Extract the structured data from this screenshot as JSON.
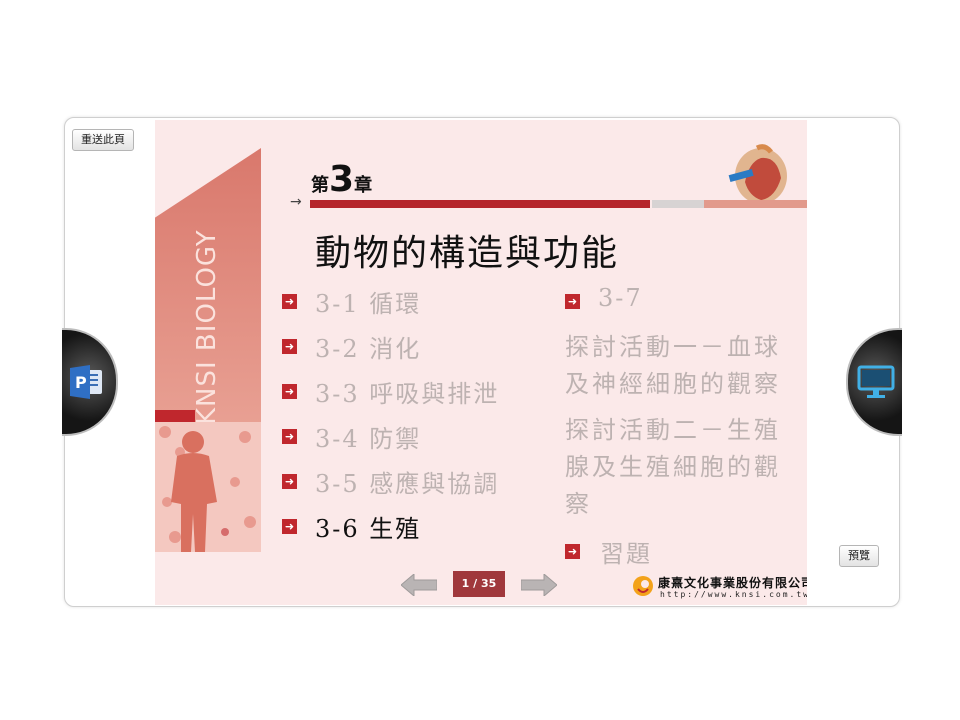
{
  "toolbar": {
    "reload_label": "重送此頁",
    "preview_label": "預覽"
  },
  "slide": {
    "brand_vertical": "KNSI BIOLOGY",
    "chapter_prefix": "第",
    "chapter_number": "3",
    "chapter_suffix": "章",
    "title": "動物的構造與功能",
    "sections": [
      {
        "label": "3-1 循環",
        "active": false
      },
      {
        "label": "3-2 消化",
        "active": false
      },
      {
        "label": "3-3 呼吸與排泄",
        "active": false
      },
      {
        "label": "3-4 防禦",
        "active": false
      },
      {
        "label": "3-5 感應與協調",
        "active": false
      },
      {
        "label": "3-6 生殖",
        "active": true
      }
    ],
    "right_section": "3-7",
    "activity1_line1": "探討活動一－血球",
    "activity1_line2": "及神經細胞的觀察",
    "activity2_line1": "探討活動二－生殖",
    "activity2_line2": "腺及生殖細胞的觀",
    "activity2_line3": "察",
    "exercise": "習題",
    "page_indicator": "1 / 35",
    "publisher": "康熹文化事業股份有限公司",
    "publisher_url": "http://www.knsi.com.tw"
  },
  "colors": {
    "accent": "#c0272d",
    "slide_bg": "#fbe9e9",
    "inactive_text": "#bdb2b1"
  },
  "icons": {
    "left": "powerpoint-icon",
    "right": "monitor-icon"
  }
}
